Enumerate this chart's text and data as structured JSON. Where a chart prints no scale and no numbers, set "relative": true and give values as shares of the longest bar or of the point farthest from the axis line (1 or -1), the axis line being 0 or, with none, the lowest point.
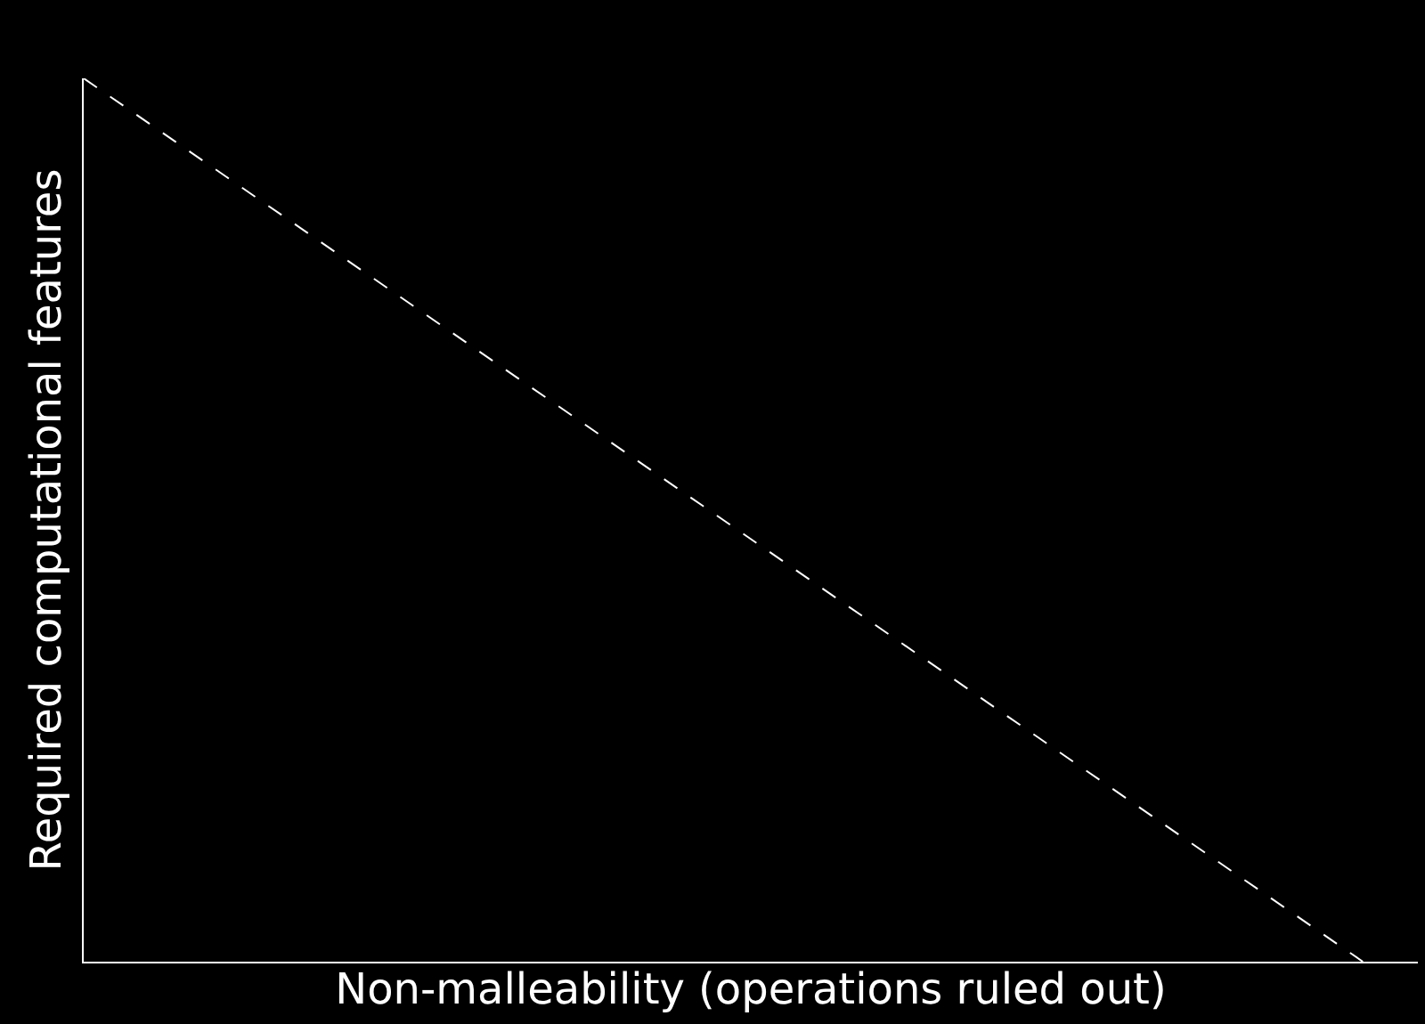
{
  "chart_data": {
    "type": "line",
    "relative": true,
    "xlabel": "Non-malleability (operations ruled out)",
    "ylabel": "Required computational features",
    "categories": [
      null,
      null
    ],
    "series": [
      {
        "color": "#ffffff",
        "values": [
          1,
          0
        ]
      }
    ],
    "line_style": "dashed",
    "grid": false,
    "legend": false
  }
}
